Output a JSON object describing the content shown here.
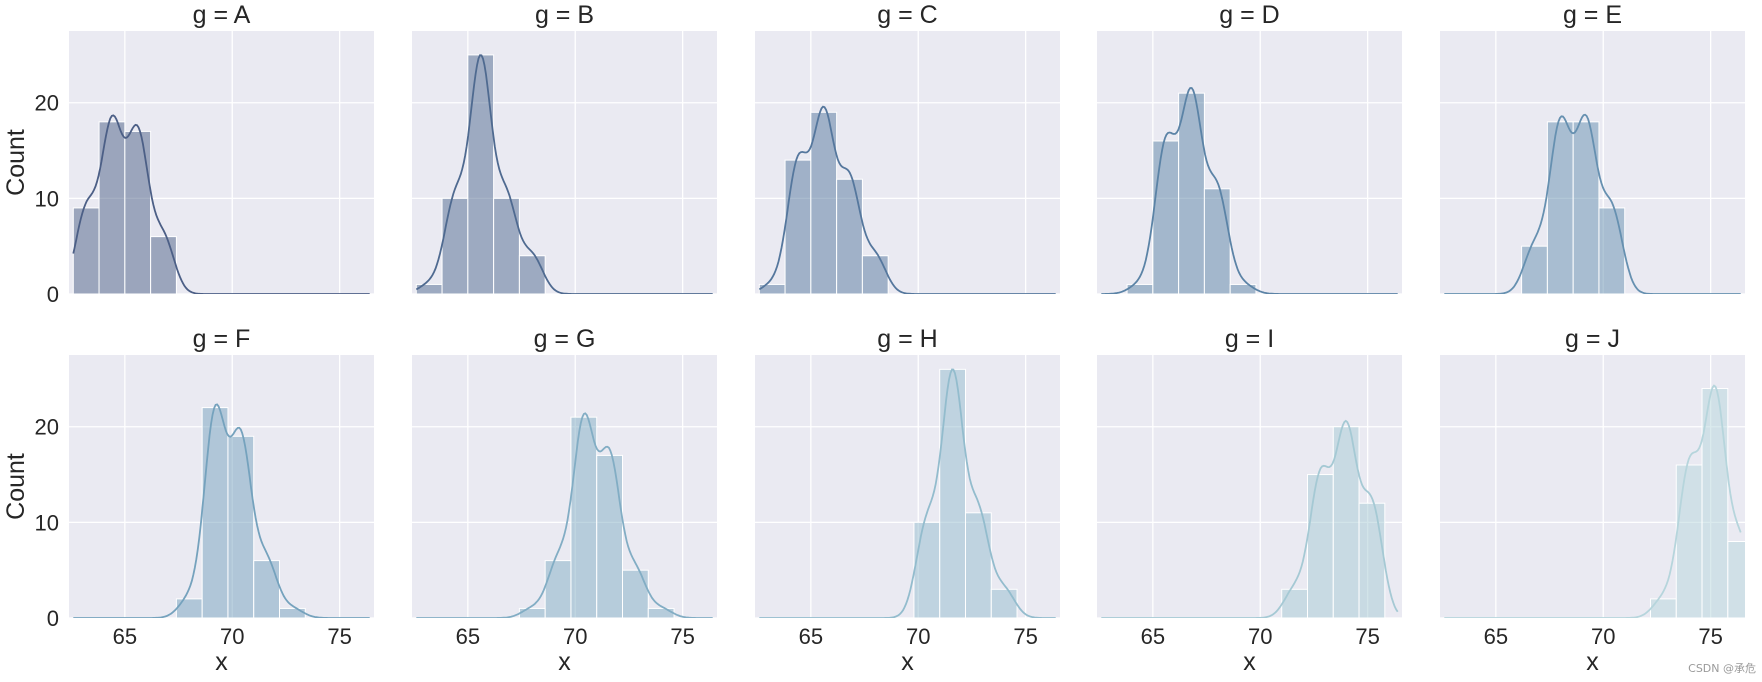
{
  "chart_data": {
    "type": "histogram-facet",
    "xlabel": "x",
    "ylabel": "Count",
    "xlim": [
      62.4,
      76.6
    ],
    "ylim": [
      0,
      27.5
    ],
    "xticks": [
      65,
      70,
      75
    ],
    "yticks": [
      0,
      10,
      20
    ],
    "grid": true,
    "bins": [
      [
        62.6,
        63.8
      ],
      [
        63.8,
        65.0
      ],
      [
        65.0,
        66.2
      ],
      [
        66.2,
        67.4
      ],
      [
        67.4,
        68.6
      ],
      [
        68.6,
        69.8
      ],
      [
        69.8,
        71.0
      ],
      [
        71.0,
        72.2
      ],
      [
        72.2,
        73.4
      ],
      [
        73.4,
        74.6
      ],
      [
        74.6,
        75.8
      ],
      [
        75.8,
        77.0
      ]
    ],
    "panels": [
      {
        "title": "g = A",
        "color": "#4c5f86",
        "counts": [
          9,
          18,
          17,
          6,
          0,
          0,
          0,
          0,
          0,
          0,
          0,
          0
        ]
      },
      {
        "title": "g = B",
        "color": "#4f6a90",
        "counts": [
          1,
          10,
          25,
          10,
          4,
          0,
          0,
          0,
          0,
          0,
          0,
          0
        ]
      },
      {
        "title": "g = C",
        "color": "#55779d",
        "counts": [
          1,
          14,
          19,
          12,
          4,
          0,
          0,
          0,
          0,
          0,
          0,
          0
        ]
      },
      {
        "title": "g = D",
        "color": "#5b83a6",
        "counts": [
          0,
          1,
          16,
          21,
          11,
          1,
          0,
          0,
          0,
          0,
          0,
          0
        ]
      },
      {
        "title": "g = E",
        "color": "#6690b0",
        "counts": [
          0,
          0,
          0,
          5,
          18,
          18,
          9,
          0,
          0,
          0,
          0,
          0
        ]
      },
      {
        "title": "g = F",
        "color": "#75a2bd",
        "counts": [
          0,
          0,
          0,
          0,
          2,
          22,
          19,
          6,
          1,
          0,
          0,
          0
        ]
      },
      {
        "title": "g = G",
        "color": "#82adc4",
        "counts": [
          0,
          0,
          0,
          0,
          1,
          6,
          21,
          17,
          5,
          1,
          0,
          0
        ]
      },
      {
        "title": "g = H",
        "color": "#93bccd",
        "counts": [
          0,
          0,
          0,
          0,
          0,
          0,
          10,
          26,
          11,
          3,
          0,
          0
        ]
      },
      {
        "title": "g = I",
        "color": "#a5c9d4",
        "counts": [
          0,
          0,
          0,
          0,
          0,
          0,
          0,
          3,
          15,
          20,
          12,
          0
        ]
      },
      {
        "title": "g = J",
        "color": "#b6d5dc",
        "counts": [
          0,
          0,
          0,
          0,
          0,
          0,
          0,
          0,
          2,
          16,
          24,
          8
        ]
      }
    ]
  },
  "watermark": "CSDN @承危"
}
